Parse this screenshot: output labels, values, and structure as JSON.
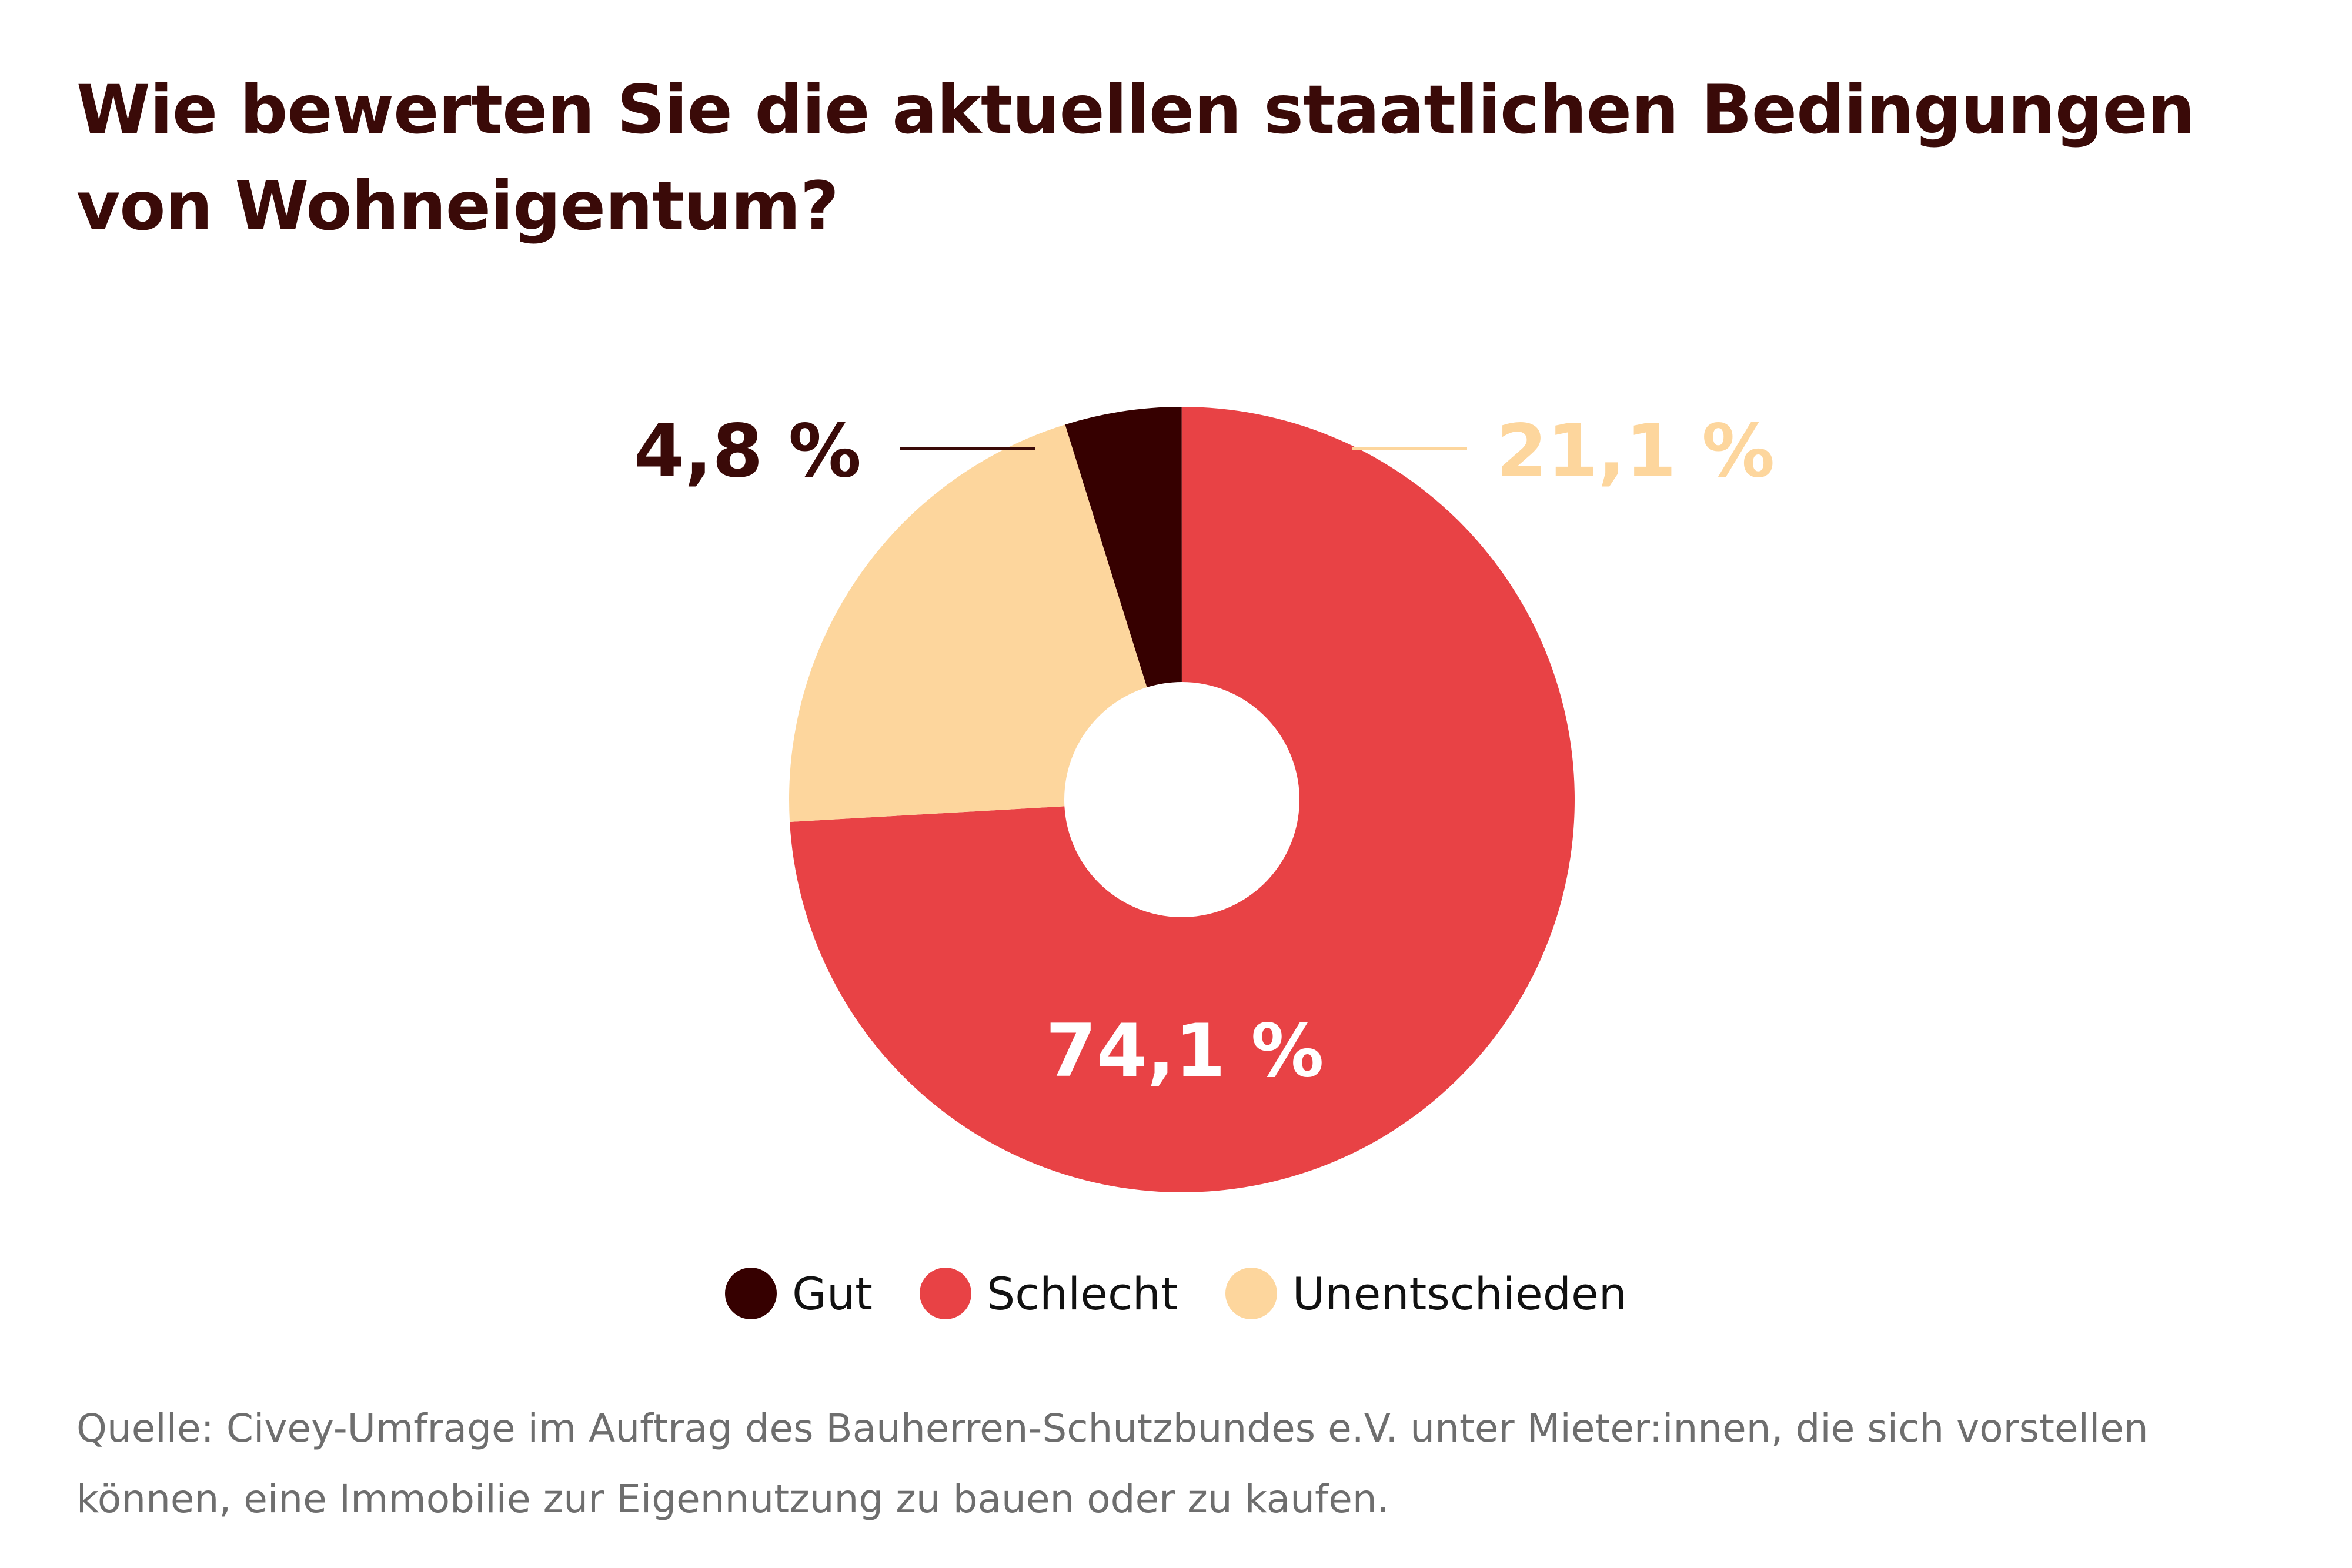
{
  "colors": {
    "title": "#3a0a08",
    "background": "#ffffff",
    "source": "#6e6e6e",
    "legend_text": "#111111"
  },
  "chart_data": {
    "type": "pie",
    "style": "donut",
    "title": "Wie bewerten Sie die aktuellen staatlichen Bedingungen von Wohneigentum?",
    "unit": "%",
    "series": [
      {
        "name": "Gut",
        "value": 4.8,
        "value_label": "4,8 %",
        "color": "#360000",
        "label_color": "#3a0a08",
        "label_placement": "outside-left"
      },
      {
        "name": "Schlecht",
        "value": 74.1,
        "value_label": "74,1 %",
        "color": "#e84245",
        "label_color": "#ffffff",
        "label_placement": "inside"
      },
      {
        "name": "Unentschieden",
        "value": 21.1,
        "value_label": "21,1 %",
        "color": "#fdd69d",
        "label_color": "#fdd69d",
        "label_placement": "outside-right"
      }
    ],
    "legend_position": "bottom"
  },
  "source_text": "Quelle: Civey-Umfrage im Auftrag des Bauherren-Schutzbundes e.V. unter Mieter:innen, die sich vorstellen können, eine Immobilie zur Eigennutzung zu bauen oder zu kaufen."
}
